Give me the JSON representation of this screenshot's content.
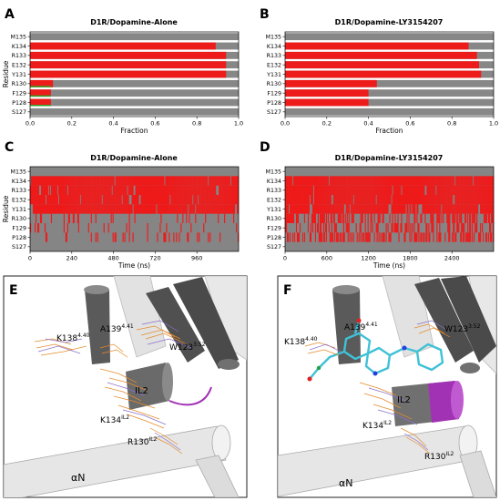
{
  "colors": {
    "red": "#ee1b1b",
    "gray": "#858585",
    "green": "#22aa22",
    "bar_bg": "#878787",
    "tube_gray": "#4f4f4f",
    "tube_light": "#dedede",
    "purple": "#a232b4",
    "orange": "#e58a2a"
  },
  "chart_data": [
    {
      "type": "bar",
      "panel_letter": "A",
      "title": "D1R/Dopamine-Alone",
      "orientation": "horizontal",
      "categories": [
        "M135",
        "K134",
        "R133",
        "E132",
        "Y131",
        "R130",
        "F129",
        "P128",
        "S127"
      ],
      "series": [
        {
          "values": [
            0.0,
            0.89,
            0.94,
            0.94,
            0.94,
            0.11,
            0.1,
            0.1,
            0.0
          ]
        }
      ],
      "secondary": [
        0.0,
        0.0,
        0.0,
        0.0,
        0.0,
        0.1,
        0.1,
        0.1,
        0.0
      ],
      "xlim": [
        0,
        1.0
      ],
      "xticks": [
        "0.0",
        "0.2",
        "0.4",
        "0.6",
        "0.8",
        "1.0"
      ],
      "xlabel": "Fraction",
      "ylabel": "Residue"
    },
    {
      "type": "bar",
      "panel_letter": "B",
      "title": "D1R/Dopamine-LY3154207",
      "orientation": "horizontal",
      "categories": [
        "M135",
        "K134",
        "R133",
        "E132",
        "Y131",
        "R130",
        "F129",
        "P128",
        "S127"
      ],
      "series": [
        {
          "values": [
            0.0,
            0.88,
            0.92,
            0.93,
            0.94,
            0.44,
            0.4,
            0.4,
            0.0
          ]
        }
      ],
      "xlim": [
        0,
        1.0
      ],
      "xticks": [
        "0.0",
        "0.2",
        "0.4",
        "0.6",
        "0.8",
        "1.0"
      ],
      "xlabel": "Fraction",
      "ylabel": ""
    },
    {
      "type": "heatmap",
      "panel_letter": "C",
      "title": "D1R/Dopamine-Alone",
      "categories": [
        "M135",
        "K134",
        "R133",
        "E132",
        "Y131",
        "R130",
        "F129",
        "P128",
        "S127"
      ],
      "occupancy": [
        0.0,
        0.89,
        0.94,
        0.94,
        0.94,
        0.11,
        0.1,
        0.1,
        0.0
      ],
      "xlim": [
        0,
        1200
      ],
      "xticks": [
        "0",
        "240",
        "480",
        "720",
        "960"
      ],
      "xtick_values": [
        0,
        240,
        480,
        720,
        960
      ],
      "xlabel": "Time (ns)",
      "ylabel": "Residue"
    },
    {
      "type": "heatmap",
      "panel_letter": "D",
      "title": "D1R/Dopamine-LY3154207",
      "categories": [
        "M135",
        "K134",
        "R133",
        "E132",
        "Y131",
        "R130",
        "F129",
        "P128",
        "S127"
      ],
      "occupancy": [
        0.0,
        0.88,
        0.92,
        0.93,
        0.94,
        0.44,
        0.4,
        0.4,
        0.0
      ],
      "xlim": [
        0,
        3000
      ],
      "xticks": [
        "0",
        "600",
        "1200",
        "1800",
        "2400"
      ],
      "xtick_values": [
        0,
        600,
        1200,
        1800,
        2400
      ],
      "xlabel": "Time (ns)",
      "ylabel": ""
    }
  ],
  "panel_e": {
    "letter": "E",
    "labels": {
      "k138": "K138",
      "k138_sup": "4.40",
      "a139": "A139",
      "a139_sup": "4.41",
      "w123": "W123",
      "w123_sup": "3.52",
      "il2": "IL2",
      "k134": "K134",
      "k134_sup": "IL2",
      "r130": "R130",
      "r130_sup": "IL2",
      "an": "αN"
    }
  },
  "panel_f": {
    "letter": "F",
    "labels": {
      "k138": "K138",
      "k138_sup": "4.40",
      "a139": "A139",
      "a139_sup": "4.41",
      "w123": "W123",
      "w123_sup": "3.52",
      "il2": "IL2",
      "k134": "K134",
      "k134_sup": "IL2",
      "r130": "R130",
      "r130_sup": "IL2",
      "an": "αN"
    }
  }
}
